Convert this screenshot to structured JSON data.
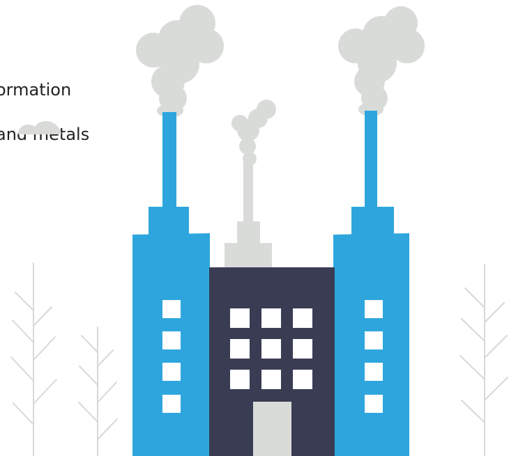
{
  "captions": {
    "line1": "ormation",
    "line2": "and metals"
  },
  "colors": {
    "tower_blue": "#2ea6dd",
    "building_navy": "#393c53",
    "smoke_gray": "#d9dbd9",
    "window_white": "#ffffff",
    "door_gray": "#d9dbd9",
    "tree_gray": "#d3d3d3",
    "text_dark": "#231f20"
  },
  "icons": {
    "factory": "factory-illustration",
    "trees": "bare-tree-icon",
    "smoke": "smoke-cloud-icon"
  }
}
